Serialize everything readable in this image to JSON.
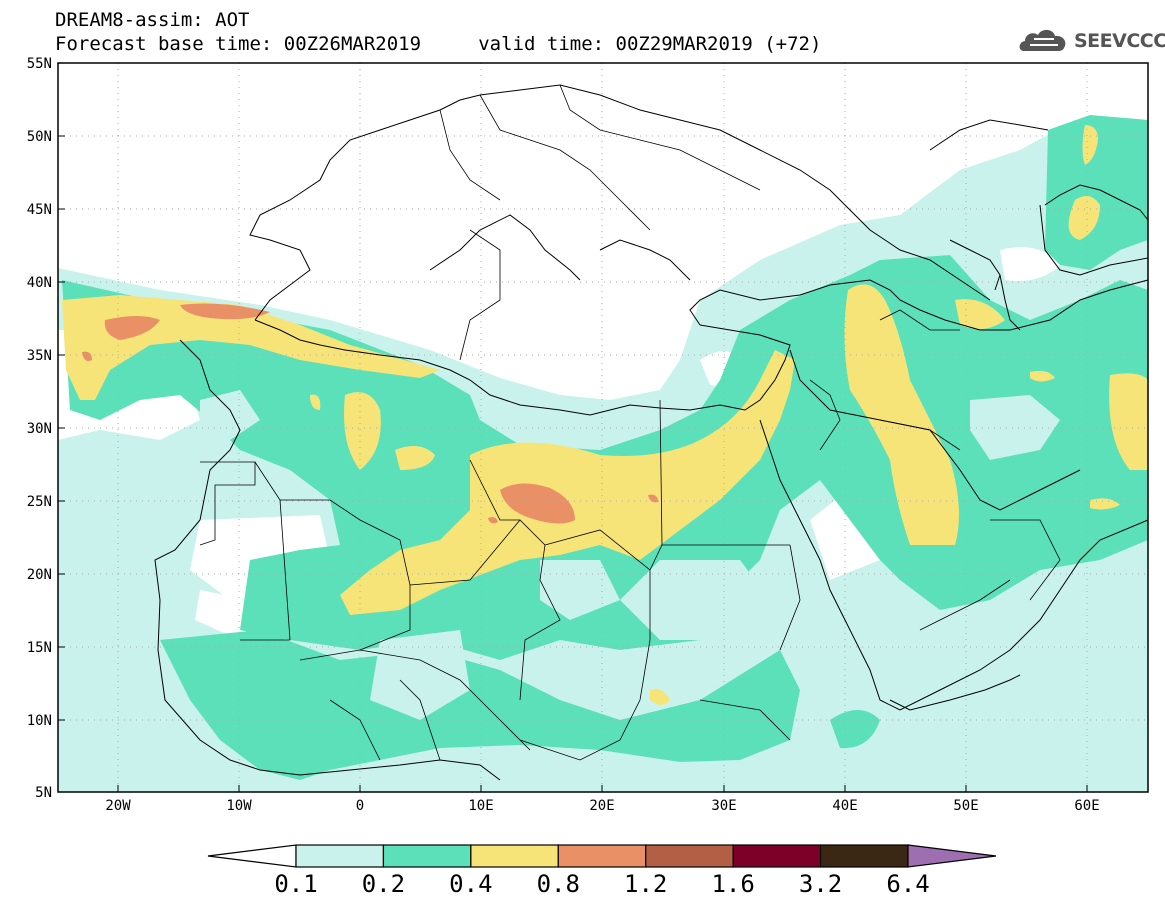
{
  "title": {
    "line1": "DREAM8-assim: AOT",
    "line2": "Forecast base time: 00Z26MAR2019     valid time: 00Z29MAR2019 (+72)"
  },
  "logo": {
    "text": "SEEVCCC",
    "icon": "cloud-icon",
    "color": "#555555"
  },
  "map": {
    "lon_range": [
      -25,
      65
    ],
    "lat_range": [
      5,
      55
    ],
    "x_ticks": [
      "20W",
      "10W",
      "0",
      "10E",
      "20E",
      "30E",
      "40E",
      "50E",
      "60E"
    ],
    "y_ticks": [
      "55N",
      "50N",
      "45N",
      "40N",
      "35N",
      "30N",
      "25N",
      "20N",
      "15N",
      "10N",
      "5N"
    ],
    "gridlines": "dotted",
    "field": "AOT"
  },
  "colorbar": {
    "labels": [
      "0.1",
      "0.2",
      "0.4",
      "0.8",
      "1.2",
      "1.6",
      "3.2",
      "6.4"
    ],
    "colors": [
      "#ffffff",
      "#c9f2ec",
      "#5ce0ba",
      "#f7e479",
      "#e99066",
      "#b25f45",
      "#7d0029",
      "#3b2814",
      "#9d6fb0"
    ]
  }
}
